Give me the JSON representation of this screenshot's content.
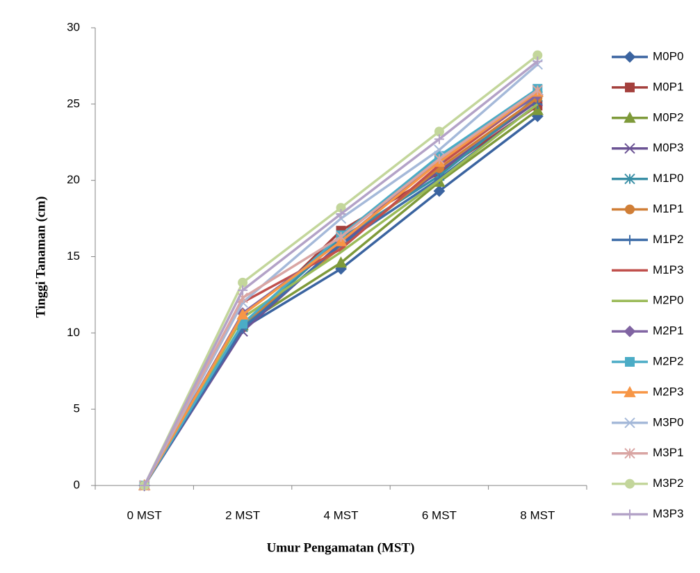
{
  "chart_data": {
    "type": "line",
    "x_label": "Umur Pengamatan (MST)",
    "y_label": "Tinggi Tanaman (cm)",
    "categories": [
      "0 MST",
      "2 MST",
      "4 MST",
      "6 MST",
      "8 MST"
    ],
    "ylim": [
      0,
      30
    ],
    "yticks": [
      0,
      5,
      10,
      15,
      20,
      25,
      30
    ],
    "grid": false,
    "legend": "right",
    "series": [
      {
        "name": "M0P0",
        "color": "#3B64A0",
        "marker": "diamond",
        "values": [
          0,
          10.3,
          14.2,
          19.3,
          24.2
        ]
      },
      {
        "name": "M0P1",
        "color": "#A4403D",
        "marker": "square",
        "values": [
          0,
          10.4,
          16.7,
          20.5,
          24.9
        ]
      },
      {
        "name": "M0P2",
        "color": "#7E9A3A",
        "marker": "triangle",
        "values": [
          0,
          10.5,
          14.6,
          19.9,
          24.6
        ]
      },
      {
        "name": "M0P3",
        "color": "#6B5394",
        "marker": "x",
        "values": [
          0,
          10.1,
          15.9,
          20.6,
          25.2
        ]
      },
      {
        "name": "M1P0",
        "color": "#3A8FA6",
        "marker": "asterisk",
        "values": [
          0,
          10.4,
          16.2,
          20.3,
          25.5
        ]
      },
      {
        "name": "M1P1",
        "color": "#D07E36",
        "marker": "circle",
        "values": [
          0,
          10.6,
          15.6,
          20.8,
          25.4
        ]
      },
      {
        "name": "M1P2",
        "color": "#3E6DA8",
        "marker": "plus",
        "values": [
          0,
          10.3,
          15.8,
          20.1,
          25.0
        ]
      },
      {
        "name": "M1P3",
        "color": "#C0504D",
        "marker": "none",
        "values": [
          0,
          12.0,
          15.5,
          21.0,
          25.7
        ]
      },
      {
        "name": "M2P0",
        "color": "#9BBB59",
        "marker": "none",
        "values": [
          0,
          11.0,
          15.3,
          20.0,
          25.0
        ]
      },
      {
        "name": "M2P1",
        "color": "#8064A2",
        "marker": "diamond",
        "values": [
          0,
          11.3,
          16.0,
          21.3,
          25.6
        ]
      },
      {
        "name": "M2P2",
        "color": "#4BACC6",
        "marker": "square",
        "values": [
          0,
          10.6,
          16.4,
          21.6,
          26.0
        ]
      },
      {
        "name": "M2P3",
        "color": "#F79646",
        "marker": "triangle",
        "values": [
          0,
          11.2,
          16.0,
          21.2,
          25.8
        ]
      },
      {
        "name": "M3P0",
        "color": "#A5B9D9",
        "marker": "x",
        "values": [
          0,
          12.0,
          17.5,
          22.0,
          27.6
        ]
      },
      {
        "name": "M3P1",
        "color": "#D9A5A3",
        "marker": "asterisk",
        "values": [
          0,
          12.3,
          16.3,
          21.4,
          25.9
        ]
      },
      {
        "name": "M3P2",
        "color": "#C3D69B",
        "marker": "circle",
        "values": [
          0,
          13.3,
          18.2,
          23.2,
          28.2
        ]
      },
      {
        "name": "M3P3",
        "color": "#B3A2C7",
        "marker": "plus",
        "values": [
          0,
          12.8,
          17.8,
          22.7,
          27.8
        ]
      }
    ]
  }
}
